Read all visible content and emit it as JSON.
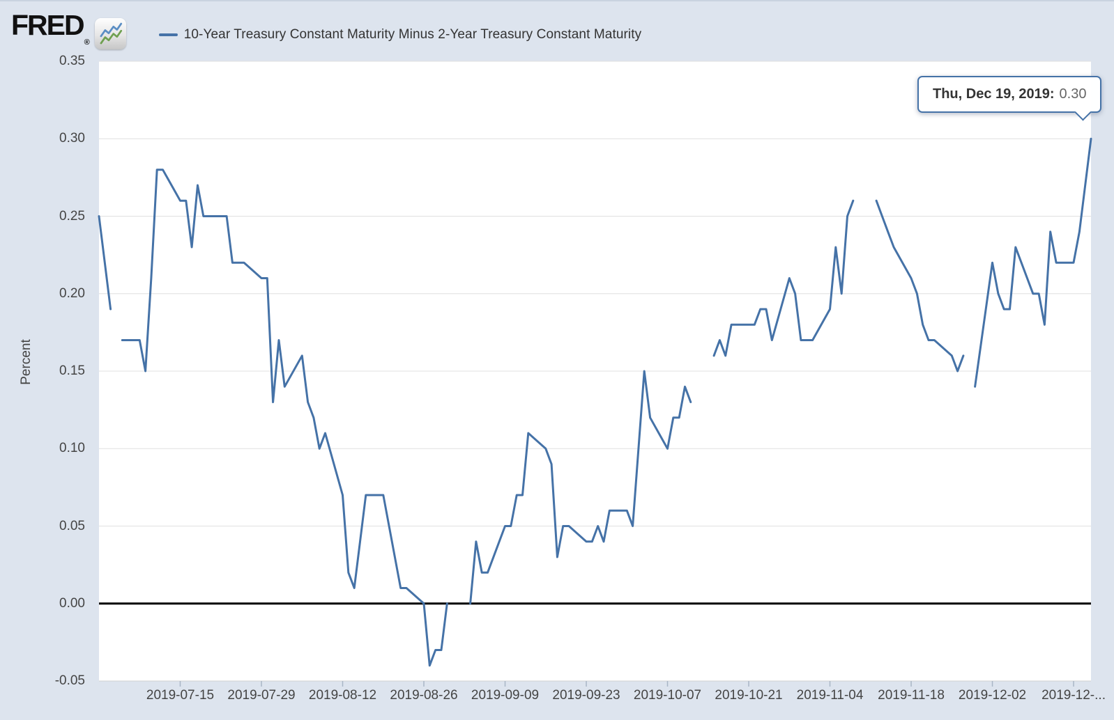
{
  "page": {
    "background": "#dde4ee"
  },
  "header": {
    "brand": "FRED",
    "registered_mark": "®",
    "legend": {
      "swatch_color": "#4572a7",
      "label": "10-Year Treasury Constant Maturity Minus 2-Year Treasury Constant Maturity"
    }
  },
  "tooltip": {
    "date_label": "Thu, Dec 19, 2019:",
    "value": "0.30"
  },
  "chart_data": {
    "type": "line",
    "series_name": "10-Year Treasury Constant Maturity Minus 2-Year Treasury Constant Maturity",
    "ylabel": "Percent",
    "line_color": "#4572a7",
    "zero_line_color": "#000000",
    "grid_color": "#e0e0e0",
    "grid": "on",
    "ylim": [
      -0.05,
      0.35
    ],
    "x_domain": [
      "2019-07-01",
      "2019-12-19"
    ],
    "y_ticks": [
      {
        "v": 0.35,
        "label": "0.35"
      },
      {
        "v": 0.3,
        "label": "0.30"
      },
      {
        "v": 0.25,
        "label": "0.25"
      },
      {
        "v": 0.2,
        "label": "0.20"
      },
      {
        "v": 0.15,
        "label": "0.15"
      },
      {
        "v": 0.1,
        "label": "0.10"
      },
      {
        "v": 0.05,
        "label": "0.05"
      },
      {
        "v": 0.0,
        "label": "0.00"
      },
      {
        "v": -0.05,
        "label": "-0.05"
      }
    ],
    "x_ticks": [
      {
        "date": "2019-07-15",
        "label": "2019-07-15"
      },
      {
        "date": "2019-07-29",
        "label": "2019-07-29"
      },
      {
        "date": "2019-08-12",
        "label": "2019-08-12"
      },
      {
        "date": "2019-08-26",
        "label": "2019-08-26"
      },
      {
        "date": "2019-09-09",
        "label": "2019-09-09"
      },
      {
        "date": "2019-09-23",
        "label": "2019-09-23"
      },
      {
        "date": "2019-10-07",
        "label": "2019-10-07"
      },
      {
        "date": "2019-10-21",
        "label": "2019-10-21"
      },
      {
        "date": "2019-11-04",
        "label": "2019-11-04"
      },
      {
        "date": "2019-11-18",
        "label": "2019-11-18"
      },
      {
        "date": "2019-12-02",
        "label": "2019-12-02"
      },
      {
        "date": "2019-12-16",
        "label": "2019-12-..."
      }
    ],
    "points": [
      [
        "2019-07-01",
        0.25
      ],
      [
        "2019-07-02",
        0.22
      ],
      [
        "2019-07-03",
        0.19
      ],
      [
        "2019-07-04",
        null
      ],
      [
        "2019-07-05",
        0.17
      ],
      [
        "2019-07-08",
        0.17
      ],
      [
        "2019-07-09",
        0.15
      ],
      [
        "2019-07-10",
        0.21
      ],
      [
        "2019-07-11",
        0.28
      ],
      [
        "2019-07-12",
        0.28
      ],
      [
        "2019-07-15",
        0.26
      ],
      [
        "2019-07-16",
        0.26
      ],
      [
        "2019-07-17",
        0.23
      ],
      [
        "2019-07-18",
        0.27
      ],
      [
        "2019-07-19",
        0.25
      ],
      [
        "2019-07-22",
        0.25
      ],
      [
        "2019-07-23",
        0.25
      ],
      [
        "2019-07-24",
        0.22
      ],
      [
        "2019-07-25",
        0.22
      ],
      [
        "2019-07-26",
        0.22
      ],
      [
        "2019-07-29",
        0.21
      ],
      [
        "2019-07-30",
        0.21
      ],
      [
        "2019-07-31",
        0.13
      ],
      [
        "2019-08-01",
        0.17
      ],
      [
        "2019-08-02",
        0.14
      ],
      [
        "2019-08-05",
        0.16
      ],
      [
        "2019-08-06",
        0.13
      ],
      [
        "2019-08-07",
        0.12
      ],
      [
        "2019-08-08",
        0.1
      ],
      [
        "2019-08-09",
        0.11
      ],
      [
        "2019-08-12",
        0.07
      ],
      [
        "2019-08-13",
        0.02
      ],
      [
        "2019-08-14",
        0.01
      ],
      [
        "2019-08-15",
        0.04
      ],
      [
        "2019-08-16",
        0.07
      ],
      [
        "2019-08-19",
        0.07
      ],
      [
        "2019-08-20",
        0.05
      ],
      [
        "2019-08-21",
        0.03
      ],
      [
        "2019-08-22",
        0.01
      ],
      [
        "2019-08-23",
        0.01
      ],
      [
        "2019-08-26",
        0.0
      ],
      [
        "2019-08-27",
        -0.04
      ],
      [
        "2019-08-28",
        -0.03
      ],
      [
        "2019-08-29",
        -0.03
      ],
      [
        "2019-08-30",
        0.0
      ],
      [
        "2019-09-02",
        null
      ],
      [
        "2019-09-03",
        0.0
      ],
      [
        "2019-09-04",
        0.04
      ],
      [
        "2019-09-05",
        0.02
      ],
      [
        "2019-09-06",
        0.02
      ],
      [
        "2019-09-09",
        0.05
      ],
      [
        "2019-09-10",
        0.05
      ],
      [
        "2019-09-11",
        0.07
      ],
      [
        "2019-09-12",
        0.07
      ],
      [
        "2019-09-13",
        0.11
      ],
      [
        "2019-09-16",
        0.1
      ],
      [
        "2019-09-17",
        0.09
      ],
      [
        "2019-09-18",
        0.03
      ],
      [
        "2019-09-19",
        0.05
      ],
      [
        "2019-09-20",
        0.05
      ],
      [
        "2019-09-23",
        0.04
      ],
      [
        "2019-09-24",
        0.04
      ],
      [
        "2019-09-25",
        0.05
      ],
      [
        "2019-09-26",
        0.04
      ],
      [
        "2019-09-27",
        0.06
      ],
      [
        "2019-09-30",
        0.06
      ],
      [
        "2019-10-01",
        0.05
      ],
      [
        "2019-10-02",
        0.1
      ],
      [
        "2019-10-03",
        0.15
      ],
      [
        "2019-10-04",
        0.12
      ],
      [
        "2019-10-07",
        0.1
      ],
      [
        "2019-10-08",
        0.12
      ],
      [
        "2019-10-09",
        0.12
      ],
      [
        "2019-10-10",
        0.14
      ],
      [
        "2019-10-11",
        0.13
      ],
      [
        "2019-10-14",
        null
      ],
      [
        "2019-10-15",
        0.16
      ],
      [
        "2019-10-16",
        0.17
      ],
      [
        "2019-10-17",
        0.16
      ],
      [
        "2019-10-18",
        0.18
      ],
      [
        "2019-10-21",
        0.18
      ],
      [
        "2019-10-22",
        0.18
      ],
      [
        "2019-10-23",
        0.19
      ],
      [
        "2019-10-24",
        0.19
      ],
      [
        "2019-10-25",
        0.17
      ],
      [
        "2019-10-28",
        0.21
      ],
      [
        "2019-10-29",
        0.2
      ],
      [
        "2019-10-30",
        0.17
      ],
      [
        "2019-10-31",
        0.17
      ],
      [
        "2019-11-01",
        0.17
      ],
      [
        "2019-11-04",
        0.19
      ],
      [
        "2019-11-05",
        0.23
      ],
      [
        "2019-11-06",
        0.2
      ],
      [
        "2019-11-07",
        0.25
      ],
      [
        "2019-11-08",
        0.26
      ],
      [
        "2019-11-11",
        null
      ],
      [
        "2019-11-12",
        0.26
      ],
      [
        "2019-11-13",
        0.25
      ],
      [
        "2019-11-14",
        0.24
      ],
      [
        "2019-11-15",
        0.23
      ],
      [
        "2019-11-18",
        0.21
      ],
      [
        "2019-11-19",
        0.2
      ],
      [
        "2019-11-20",
        0.18
      ],
      [
        "2019-11-21",
        0.17
      ],
      [
        "2019-11-22",
        0.17
      ],
      [
        "2019-11-25",
        0.16
      ],
      [
        "2019-11-26",
        0.15
      ],
      [
        "2019-11-27",
        0.16
      ],
      [
        "2019-11-28",
        null
      ],
      [
        "2019-11-29",
        0.14
      ],
      [
        "2019-12-02",
        0.22
      ],
      [
        "2019-12-03",
        0.2
      ],
      [
        "2019-12-04",
        0.19
      ],
      [
        "2019-12-05",
        0.19
      ],
      [
        "2019-12-06",
        0.23
      ],
      [
        "2019-12-09",
        0.2
      ],
      [
        "2019-12-10",
        0.2
      ],
      [
        "2019-12-11",
        0.18
      ],
      [
        "2019-12-12",
        0.24
      ],
      [
        "2019-12-13",
        0.22
      ],
      [
        "2019-12-16",
        0.22
      ],
      [
        "2019-12-17",
        0.24
      ],
      [
        "2019-12-18",
        0.27
      ],
      [
        "2019-12-19",
        0.3
      ]
    ]
  }
}
